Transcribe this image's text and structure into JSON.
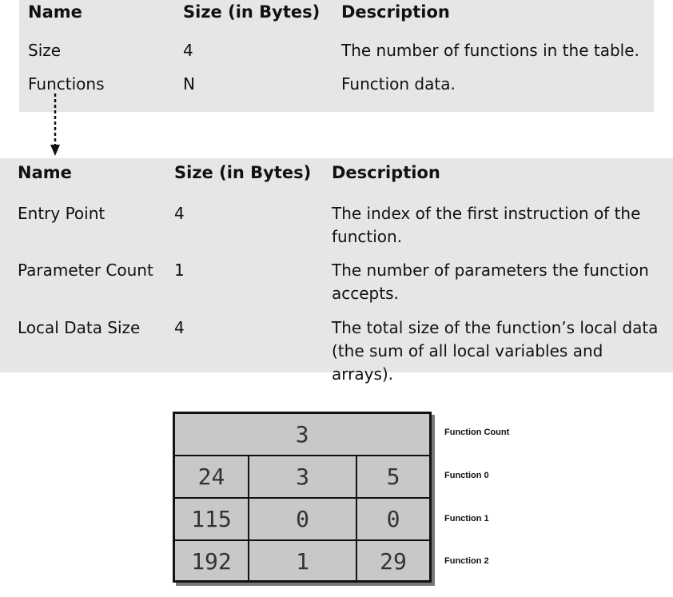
{
  "table1": {
    "headers": [
      "Name",
      "Size (in Bytes)",
      "Description"
    ],
    "rows": [
      [
        "Size",
        "4",
        "The number of functions in the table."
      ],
      [
        "Functions",
        "N",
        "Function data."
      ]
    ]
  },
  "table2": {
    "headers": [
      "Name",
      "Size (in Bytes)",
      "Description"
    ],
    "rows": [
      [
        "Entry Point",
        "4",
        "The index of the first instruction of the function."
      ],
      [
        "Parameter Count",
        "1",
        "The number of parameters the function accepts."
      ],
      [
        "Local Data Size",
        "4",
        "The total size of the function’s local data (the sum of all local variables and arrays)."
      ]
    ]
  },
  "grid": {
    "count": "3",
    "rows": [
      [
        "24",
        "3",
        "5"
      ],
      [
        "115",
        "0",
        "0"
      ],
      [
        "192",
        "1",
        "29"
      ]
    ],
    "labels": [
      "Function Count",
      "Function 0",
      "Function 1",
      "Function 2"
    ]
  }
}
